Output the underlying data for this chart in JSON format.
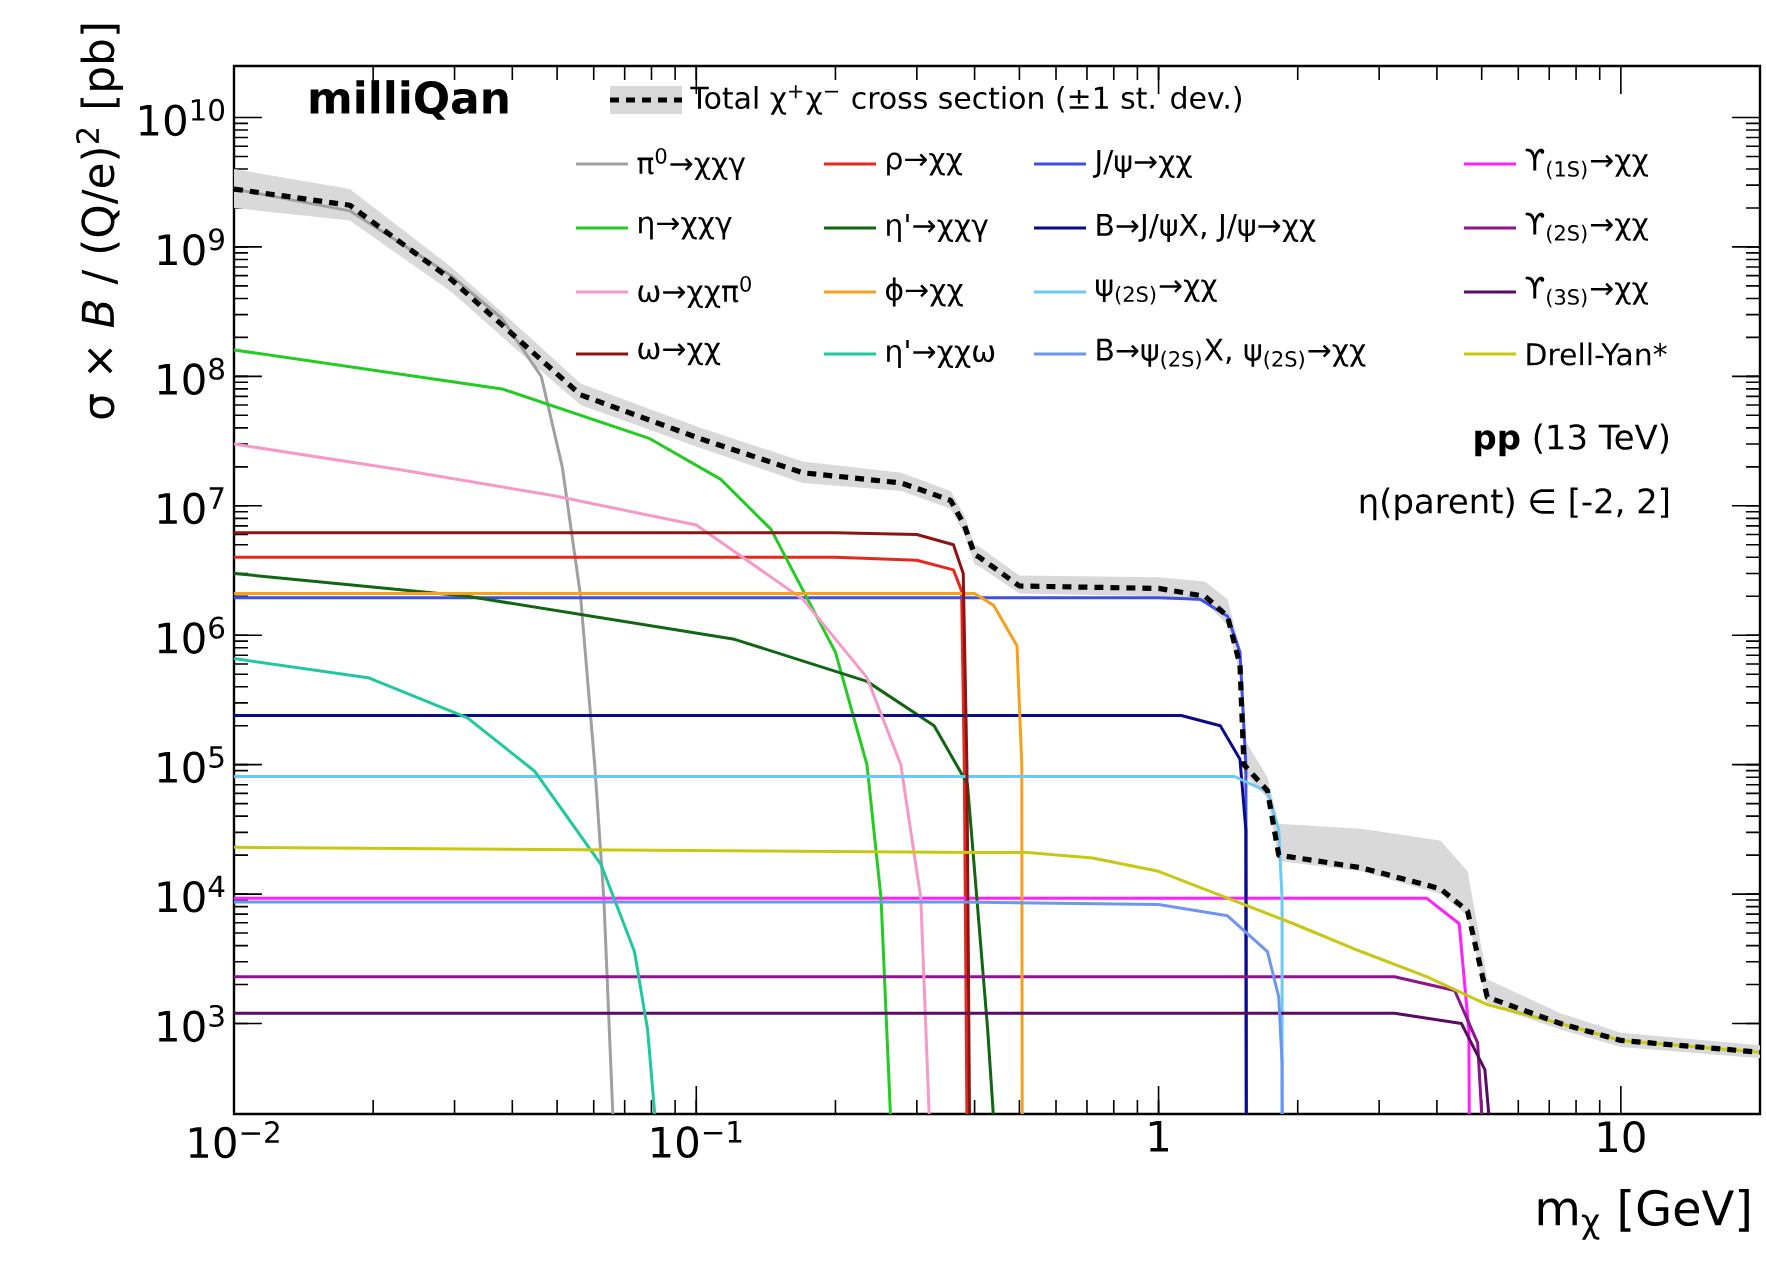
{
  "chart_data": {
    "type": "line",
    "title": "milliQan",
    "xlabel": "m$_{χ}$ [GeV]",
    "ylabel": "σ × *B* / (Q/e)$^{2}$ [pb]",
    "annotations": [
      "**pp** (13 TeV)",
      "η(parent) ∈ [-2, 2]"
    ],
    "log": "xy",
    "xlim": [
      0.01,
      20
    ],
    "ylim": [
      200,
      25000000000
    ],
    "xticks": [
      {
        "value": 0.01,
        "label": "10$^{−2}$"
      },
      {
        "value": 0.1,
        "label": "10$^{−1}$"
      },
      1,
      10
    ],
    "yticks": [
      {
        "value": 1000,
        "label": "10$^{3}$"
      },
      {
        "value": 10000,
        "label": "10$^{4}$"
      },
      {
        "value": 100000,
        "label": "10$^{5}$"
      },
      {
        "value": 1000000,
        "label": "10$^{6}$"
      },
      {
        "value": 10000000,
        "label": "10$^{7}$"
      },
      {
        "value": 100000000,
        "label": "10$^{8}$"
      },
      {
        "value": 1000000000,
        "label": "10$^{9}$"
      },
      {
        "value": 10000000000,
        "label": "10$^{10}$"
      }
    ],
    "legend": "top",
    "marker": "none",
    "line_style": "solid",
    "series": [
      {
        "name": "Total χ$^{+}$χ$^{−}$ cross section (±1 st. dev.)",
        "color": "#000000",
        "line_style": "dashed",
        "x": [
          0.01,
          0.0178,
          0.0295,
          0.0437,
          0.0562,
          0.102,
          0.17,
          0.278,
          0.355,
          0.38,
          0.4,
          0.41,
          0.5,
          1.0,
          1.26,
          1.41,
          1.5,
          1.53,
          1.72,
          1.82,
          2.74,
          4.07,
          4.66,
          5.14,
          7.4,
          10,
          20
        ],
        "values": [
          2800000000.0,
          2100000000.0,
          560000000.0,
          160000000.0,
          72000000.0,
          33000000.0,
          18000000.0,
          15000000.0,
          11000000.0,
          7100000.0,
          4200000.0,
          4000000.0,
          2400000.0,
          2300000.0,
          2000000.0,
          1400000.0,
          590000.0,
          100000.0,
          63000.0,
          20000.0,
          16000.0,
          11000.0,
          7400.0,
          1600.0,
          1000.0,
          740,
          600
        ],
        "lower": [
          2000000000.0,
          1600000000.0,
          450000000.0,
          130000000.0,
          60000000.0,
          28000000.0,
          15000000.0,
          13000000.0,
          9500000.0,
          6000000.0,
          3500000.0,
          3400000.0,
          2100000.0,
          2000000.0,
          1800000.0,
          1200000.0,
          500000.0,
          85000.0,
          55000.0,
          18000.0,
          15000.0,
          10000.0,
          6800.0,
          1400.0,
          900,
          660,
          540
        ],
        "upper": [
          4000000000.0,
          2800000000.0,
          700000000.0,
          200000000.0,
          88000000.0,
          40000000.0,
          22000000.0,
          18000000.0,
          13000000.0,
          8500000.0,
          5000000.0,
          4800000.0,
          2900000.0,
          2800000.0,
          2600000.0,
          1900000.0,
          800000.0,
          160000.0,
          80000.0,
          35000.0,
          32000.0,
          26000.0,
          15000.0,
          2200.0,
          1200.0,
          850,
          680
        ]
      },
      {
        "name": "π$^{0}$→χχγ",
        "color": "#a0a0a0",
        "x": [
          0.01,
          0.0178,
          0.0295,
          0.038,
          0.0462,
          0.0513,
          0.0562,
          0.0603,
          0.0631,
          0.066
        ],
        "values": [
          2800000000.0,
          1900000000.0,
          600000000.0,
          280000000.0,
          100000000.0,
          20000000.0,
          2000000.0,
          100000.0,
          9300.0,
          200
        ]
      },
      {
        "name": "ρ→χχ",
        "color": "#e8281e",
        "x": [
          0.01,
          0.2,
          0.3,
          0.36,
          0.375,
          0.38,
          0.385
        ],
        "values": [
          4000000.0,
          4000000.0,
          3800000.0,
          3200000.0,
          2200000.0,
          100000.0,
          200
        ]
      },
      {
        "name": "J/ψ→χχ",
        "color": "#3c50e6",
        "x": [
          0.01,
          1.0,
          1.23,
          1.41,
          1.5,
          1.545,
          1.548
        ],
        "values": [
          1950000.0,
          1950000.0,
          1900000.0,
          1400000.0,
          740000.0,
          100000.0,
          200
        ]
      },
      {
        "name": "ϒ$_{(1S)}$→χχ",
        "color": "#ff20ff",
        "x": [
          0.01,
          3.8,
          4.47,
          4.69,
          4.7
        ],
        "values": [
          9300.0,
          9300.0,
          5900.0,
          890,
          200
        ]
      },
      {
        "name": "η→χχγ",
        "color": "#22cc22",
        "x": [
          0.01,
          0.038,
          0.0794,
          0.113,
          0.145,
          0.2,
          0.234,
          0.251,
          0.263
        ],
        "values": [
          160000000.0,
          80000000.0,
          33000000.0,
          16000000.0,
          6600000.0,
          740000.0,
          100000.0,
          9300.0,
          200
        ]
      },
      {
        "name": "η'→χχγ",
        "color": "#116611",
        "x": [
          0.01,
          0.032,
          0.121,
          0.234,
          0.327,
          0.386,
          0.427,
          0.439
        ],
        "values": [
          3000000.0,
          2000000.0,
          930000.0,
          440000.0,
          200000.0,
          71000.0,
          890,
          200
        ]
      },
      {
        "name": "B→J/ψX, J/ψ→χχ",
        "color": "#0a0a8c",
        "x": [
          0.01,
          1.12,
          1.36,
          1.5,
          1.545,
          1.548
        ],
        "values": [
          240000.0,
          240000.0,
          200000.0,
          110000.0,
          31000.0,
          200
        ]
      },
      {
        "name": "ϒ$_{(2S)}$→χχ",
        "color": "#8c148c",
        "x": [
          0.01,
          3.24,
          4.37,
          4.9,
          5.0
        ],
        "values": [
          2300.0,
          2300.0,
          1800.0,
          710,
          200
        ]
      },
      {
        "name": "ω→χχπ$^{0}$",
        "color": "#f59ac8",
        "x": [
          0.01,
          0.0229,
          0.049,
          0.1,
          0.17,
          0.234,
          0.277,
          0.306,
          0.319
        ],
        "values": [
          30000000.0,
          19000000.0,
          12000000.0,
          7100000.0,
          1900000.0,
          470000.0,
          100000.0,
          9300.0,
          200
        ]
      },
      {
        "name": "ϕ→χχ",
        "color": "#f5a01e",
        "x": [
          0.01,
          0.4,
          0.44,
          0.494,
          0.506,
          0.507
        ],
        "values": [
          2100000.0,
          2100000.0,
          1700000.0,
          830000.0,
          100000.0,
          200
        ]
      },
      {
        "name": "ψ$_{(2S)}$→χχ",
        "color": "#6ec8f5",
        "x": [
          0.01,
          1.46,
          1.72,
          1.82,
          1.85,
          1.851
        ],
        "values": [
          81000.0,
          81000.0,
          62000.0,
          31000.0,
          9300.0,
          200
        ]
      },
      {
        "name": "ϒ$_{(3S)}$→χχ",
        "color": "#5a0a64",
        "x": [
          0.01,
          3.24,
          4.52,
          5.08,
          5.18
        ],
        "values": [
          1200.0,
          1200.0,
          1000.0,
          440,
          200
        ]
      },
      {
        "name": "ω→χχ",
        "color": "#8c1414",
        "x": [
          0.01,
          0.2,
          0.3,
          0.36,
          0.378,
          0.385,
          0.39
        ],
        "values": [
          6200000.0,
          6200000.0,
          6000000.0,
          5000000.0,
          3000000.0,
          100000.0,
          200
        ]
      },
      {
        "name": "η'→χχω",
        "color": "#20c8a0",
        "x": [
          0.01,
          0.0195,
          0.032,
          0.0447,
          0.0622,
          0.0735,
          0.0785,
          0.0813
        ],
        "values": [
          660000.0,
          470000.0,
          230000.0,
          89000.0,
          17000.0,
          3600.0,
          890,
          200
        ]
      },
      {
        "name": "B→ψ$_{(2S)}$X, ψ$_{(2S)}$→χχ",
        "color": "#6e96f0",
        "x": [
          0.01,
          0.37,
          1.0,
          1.41,
          1.72,
          1.82,
          1.85,
          1.851
        ],
        "values": [
          8700.0,
          8700.0,
          8300.0,
          6800.0,
          3600.0,
          1600.0,
          500,
          200
        ]
      },
      {
        "name": "Drell-Yan*",
        "color": "#c8c814",
        "x": [
          0.01,
          0.4,
          0.52,
          0.72,
          1.0,
          1.41,
          1.96,
          2.74,
          3.8,
          5.14,
          7.4,
          10,
          20
        ],
        "values": [
          23000.0,
          21000.0,
          21000.0,
          19000.0,
          15000.0,
          9300.0,
          5900.0,
          3600.0,
          2300.0,
          1400.0,
          1000.0,
          740,
          600
        ]
      }
    ]
  }
}
